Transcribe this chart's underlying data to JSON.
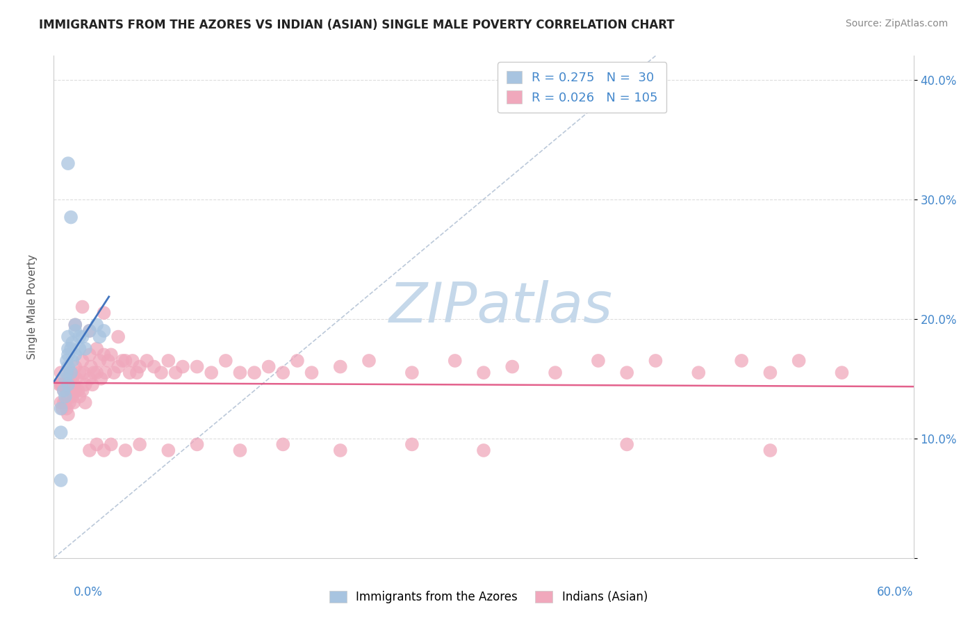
{
  "title": "IMMIGRANTS FROM THE AZORES VS INDIAN (ASIAN) SINGLE MALE POVERTY CORRELATION CHART",
  "source": "Source: ZipAtlas.com",
  "ylabel": "Single Male Poverty",
  "xlim": [
    0.0,
    0.6
  ],
  "ylim": [
    0.0,
    0.42
  ],
  "ytick_vals": [
    0.0,
    0.1,
    0.2,
    0.3,
    0.4
  ],
  "ytick_labels": [
    "",
    "10.0%",
    "20.0%",
    "30.0%",
    "40.0%"
  ],
  "blue_color": "#a8c4e0",
  "pink_color": "#f0a8bc",
  "trend_blue_color": "#3a6fbc",
  "trend_pink_color": "#e05080",
  "ref_line_color": "#aabbd0",
  "watermark": "ZIPatlas",
  "watermark_color": "#c5d8ea",
  "azores_x": [
    0.005,
    0.005,
    0.007,
    0.008,
    0.008,
    0.009,
    0.009,
    0.01,
    0.01,
    0.01,
    0.01,
    0.01,
    0.012,
    0.012,
    0.013,
    0.013,
    0.015,
    0.015,
    0.015,
    0.018,
    0.018,
    0.02,
    0.022,
    0.025,
    0.03,
    0.032,
    0.035,
    0.01,
    0.012,
    0.005
  ],
  "azores_y": [
    0.125,
    0.105,
    0.14,
    0.135,
    0.15,
    0.155,
    0.165,
    0.145,
    0.16,
    0.17,
    0.175,
    0.185,
    0.155,
    0.175,
    0.165,
    0.18,
    0.17,
    0.19,
    0.195,
    0.175,
    0.185,
    0.185,
    0.175,
    0.19,
    0.195,
    0.185,
    0.19,
    0.33,
    0.285,
    0.065
  ],
  "indian_x": [
    0.004,
    0.005,
    0.005,
    0.005,
    0.006,
    0.006,
    0.007,
    0.007,
    0.008,
    0.008,
    0.009,
    0.009,
    0.01,
    0.01,
    0.01,
    0.011,
    0.011,
    0.012,
    0.012,
    0.013,
    0.013,
    0.014,
    0.014,
    0.015,
    0.015,
    0.016,
    0.017,
    0.018,
    0.018,
    0.02,
    0.02,
    0.021,
    0.022,
    0.022,
    0.025,
    0.025,
    0.026,
    0.027,
    0.028,
    0.03,
    0.03,
    0.032,
    0.033,
    0.035,
    0.036,
    0.038,
    0.04,
    0.042,
    0.045,
    0.048,
    0.05,
    0.053,
    0.055,
    0.058,
    0.06,
    0.065,
    0.07,
    0.075,
    0.08,
    0.085,
    0.09,
    0.1,
    0.11,
    0.12,
    0.13,
    0.14,
    0.15,
    0.16,
    0.17,
    0.18,
    0.2,
    0.22,
    0.25,
    0.28,
    0.3,
    0.32,
    0.35,
    0.38,
    0.4,
    0.42,
    0.45,
    0.48,
    0.5,
    0.52,
    0.55,
    0.025,
    0.03,
    0.035,
    0.04,
    0.05,
    0.06,
    0.08,
    0.1,
    0.13,
    0.16,
    0.2,
    0.25,
    0.3,
    0.4,
    0.5,
    0.015,
    0.02,
    0.025,
    0.035,
    0.045
  ],
  "indian_y": [
    0.145,
    0.145,
    0.155,
    0.13,
    0.145,
    0.125,
    0.14,
    0.13,
    0.145,
    0.13,
    0.14,
    0.125,
    0.15,
    0.135,
    0.12,
    0.145,
    0.13,
    0.155,
    0.14,
    0.15,
    0.135,
    0.145,
    0.13,
    0.16,
    0.14,
    0.15,
    0.14,
    0.155,
    0.135,
    0.165,
    0.14,
    0.155,
    0.145,
    0.13,
    0.17,
    0.15,
    0.16,
    0.145,
    0.155,
    0.175,
    0.155,
    0.165,
    0.15,
    0.17,
    0.155,
    0.165,
    0.17,
    0.155,
    0.16,
    0.165,
    0.165,
    0.155,
    0.165,
    0.155,
    0.16,
    0.165,
    0.16,
    0.155,
    0.165,
    0.155,
    0.16,
    0.16,
    0.155,
    0.165,
    0.155,
    0.155,
    0.16,
    0.155,
    0.165,
    0.155,
    0.16,
    0.165,
    0.155,
    0.165,
    0.155,
    0.16,
    0.155,
    0.165,
    0.155,
    0.165,
    0.155,
    0.165,
    0.155,
    0.165,
    0.155,
    0.09,
    0.095,
    0.09,
    0.095,
    0.09,
    0.095,
    0.09,
    0.095,
    0.09,
    0.095,
    0.09,
    0.095,
    0.09,
    0.095,
    0.09,
    0.195,
    0.21,
    0.19,
    0.205,
    0.185
  ]
}
